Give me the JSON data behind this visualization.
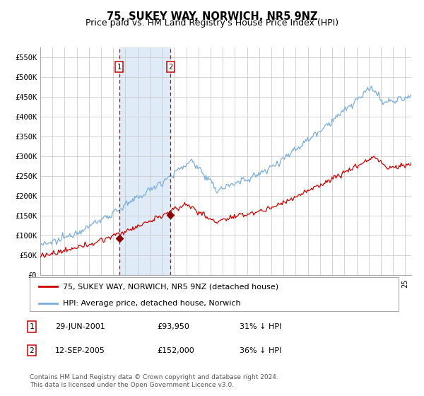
{
  "title": "75, SUKEY WAY, NORWICH, NR5 9NZ",
  "subtitle": "Price paid vs. HM Land Registry's House Price Index (HPI)",
  "background_color": "#ffffff",
  "plot_bg_color": "#ffffff",
  "grid_color": "#cccccc",
  "ylim": [
    0,
    575000
  ],
  "yticks": [
    0,
    50000,
    100000,
    150000,
    200000,
    250000,
    300000,
    350000,
    400000,
    450000,
    500000,
    550000
  ],
  "ytick_labels": [
    "£0",
    "£50K",
    "£100K",
    "£150K",
    "£200K",
    "£250K",
    "£300K",
    "£350K",
    "£400K",
    "£450K",
    "£500K",
    "£550K"
  ],
  "xlim_start": 1995.0,
  "xlim_end": 2025.5,
  "sale1_date_num": 2001.49,
  "sale1_price": 93950,
  "sale2_date_num": 2005.71,
  "sale2_price": 152000,
  "sale1_label": "1",
  "sale2_label": "2",
  "hpi_line_color": "#7aaddd",
  "price_line_color": "#cc0000",
  "dashed_line_color": "#cc0000",
  "shade_color": "#d8e8f5",
  "marker_color": "#880000",
  "legend_entries": [
    "75, SUKEY WAY, NORWICH, NR5 9NZ (detached house)",
    "HPI: Average price, detached house, Norwich"
  ],
  "table_rows": [
    [
      "1",
      "29-JUN-2001",
      "£93,950",
      "31% ↓ HPI"
    ],
    [
      "2",
      "12-SEP-2005",
      "£152,000",
      "36% ↓ HPI"
    ]
  ],
  "footnote": "Contains HM Land Registry data © Crown copyright and database right 2024.\nThis data is licensed under the Open Government Licence v3.0.",
  "title_fontsize": 10.5,
  "subtitle_fontsize": 9,
  "tick_fontsize": 7.5,
  "legend_fontsize": 8,
  "table_fontsize": 8,
  "footnote_fontsize": 6.5
}
